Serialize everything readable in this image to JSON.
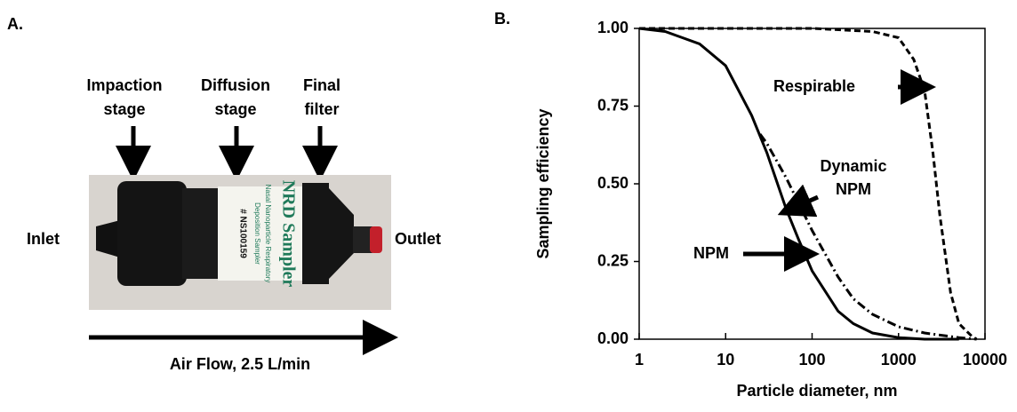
{
  "panel_a": {
    "label": "A.",
    "stages": [
      [
        "Impaction",
        "stage"
      ],
      [
        "Diffusion",
        "stage"
      ],
      [
        "Final",
        "filter"
      ]
    ],
    "inlet": "Inlet",
    "outlet": "Outlet",
    "cartridge_text": [
      "NRD Sampler",
      "Nasal Nanoparticle Respiratory",
      "Deposition Sampler",
      "# NS100159"
    ],
    "flow": "Air Flow, 2.5 L/min"
  },
  "chart_data": {
    "type": "line",
    "label": "B.",
    "x_label": "Particle diameter, nm",
    "y_label": "Sampling efficiency",
    "log_x": true,
    "xlim": [
      1,
      10000
    ],
    "xticks": [
      1,
      10,
      100,
      1000,
      10000
    ],
    "ylim": [
      0,
      1
    ],
    "yticks": [
      {
        "value": 0,
        "label": "0.00"
      },
      {
        "value": 0.25,
        "label": "0.25"
      },
      {
        "value": 0.5,
        "label": "0.50"
      },
      {
        "value": 0.75,
        "label": "0.75"
      },
      {
        "value": 1,
        "label": "1.00"
      }
    ],
    "series": [
      {
        "color": "#000000",
        "dash": "solid",
        "x": [
          1,
          2,
          5,
          10,
          20,
          30,
          50,
          70,
          100,
          200,
          300,
          500,
          1000,
          2000,
          5000
        ],
        "values": [
          1.0,
          0.99,
          0.95,
          0.88,
          0.72,
          0.6,
          0.42,
          0.32,
          0.22,
          0.09,
          0.05,
          0.02,
          0.005,
          0,
          0
        ]
      },
      {
        "color": "#000000",
        "dash": "dashdot",
        "x": [
          25,
          30,
          50,
          100,
          200,
          300,
          500,
          1000,
          2000,
          5000,
          8000
        ],
        "values": [
          0.66,
          0.63,
          0.52,
          0.35,
          0.2,
          0.13,
          0.08,
          0.04,
          0.02,
          0.005,
          0
        ]
      },
      {
        "color": "#000000",
        "dash": "dashed",
        "x": [
          1,
          100,
          500,
          1000,
          1500,
          2000,
          2500,
          3000,
          4000,
          5000,
          7000,
          8000
        ],
        "values": [
          1.0,
          1.0,
          0.99,
          0.97,
          0.9,
          0.8,
          0.6,
          0.4,
          0.15,
          0.05,
          0.01,
          0
        ]
      }
    ],
    "annotations": [
      [
        "Respirable"
      ],
      [
        "Dynamic",
        "NPM"
      ],
      [
        "NPM"
      ]
    ]
  }
}
